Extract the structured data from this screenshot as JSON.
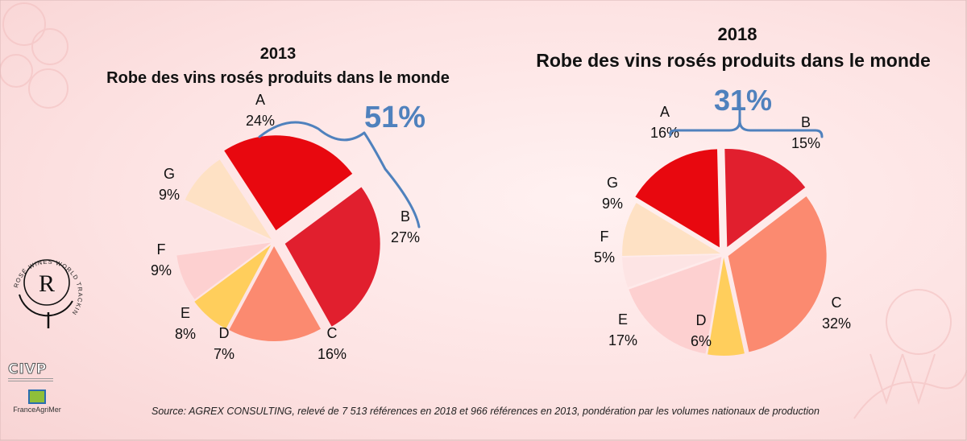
{
  "source_note": "Source: AGREX CONSULTING, relevé de 7 513 références en 2018 et  966 références en 2013, pondération par les volumes nationaux de production",
  "logos": {
    "rwt_text": "ROSÉ WINES WORLD TRACKING",
    "rwt_letter": "R",
    "civp": "CIVP",
    "franceagrimer": "FranceAgriMer"
  },
  "chart_data": [
    {
      "type": "pie",
      "year_title": "2013",
      "title": "Robe des vins rosés produits dans le monde",
      "slices": [
        {
          "label": "A",
          "value": 24,
          "value_label": "24%",
          "color": "#e8080f"
        },
        {
          "label": "B",
          "value": 27,
          "value_label": "27%",
          "color": "#e11f2e"
        },
        {
          "label": "C",
          "value": 16,
          "value_label": "16%",
          "color": "#fb8a70"
        },
        {
          "label": "D",
          "value": 7,
          "value_label": "7%",
          "color": "#ffce5c"
        },
        {
          "label": "E",
          "value": 8,
          "value_label": "8%",
          "color": "#fdd0d0"
        },
        {
          "label": "F",
          "value": 9,
          "value_label": "9%",
          "color": "#fde4e4"
        },
        {
          "label": "G",
          "value": 9,
          "value_label": "9%",
          "color": "#fee1c4"
        }
      ],
      "brace_label": "51%",
      "brace_spans": [
        "A",
        "B"
      ]
    },
    {
      "type": "pie",
      "year_title": "2018",
      "title": "Robe des vins rosés produits dans le monde",
      "slices": [
        {
          "label": "A",
          "value": 16,
          "value_label": "16%",
          "color": "#e8080f"
        },
        {
          "label": "B",
          "value": 15,
          "value_label": "15%",
          "color": "#e11f2e"
        },
        {
          "label": "C",
          "value": 32,
          "value_label": "32%",
          "color": "#fb8a70"
        },
        {
          "label": "D",
          "value": 6,
          "value_label": "6%",
          "color": "#ffce5c"
        },
        {
          "label": "E",
          "value": 17,
          "value_label": "17%",
          "color": "#fdd0d0"
        },
        {
          "label": "F",
          "value": 5,
          "value_label": "5%",
          "color": "#fde4e4"
        },
        {
          "label": "G",
          "value": 9,
          "value_label": "9%",
          "color": "#fee1c4"
        }
      ],
      "brace_label": "31%",
      "brace_spans": [
        "A",
        "B"
      ]
    }
  ]
}
